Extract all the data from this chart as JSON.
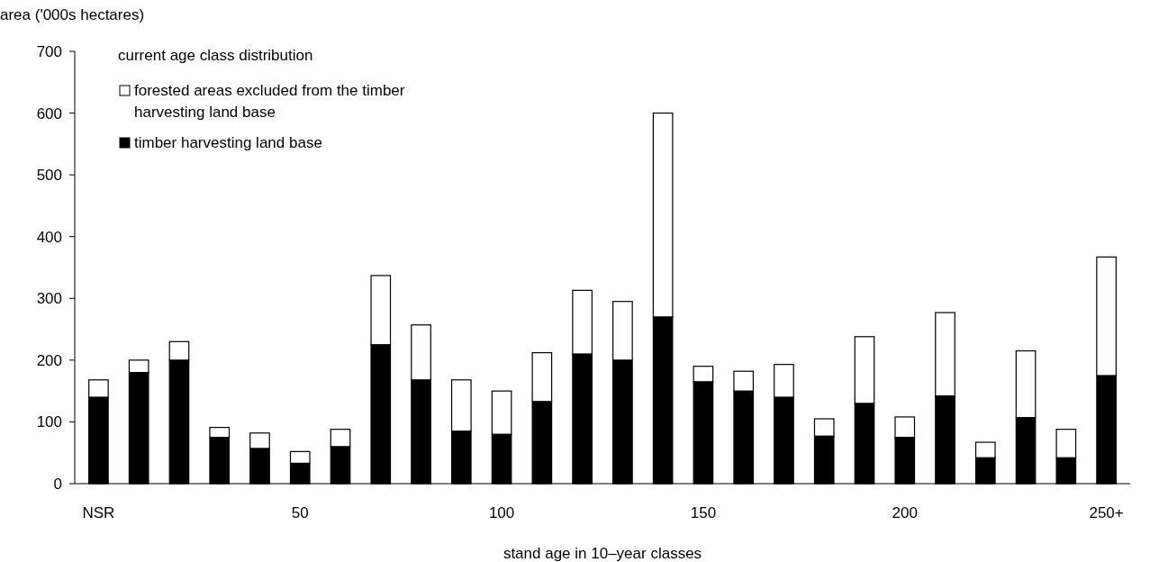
{
  "chart_data": {
    "type": "bar",
    "stacked": true,
    "ylabel": "area ('000s hectares)",
    "xlabel": "stand age in 10–year classes",
    "legend_title": "current age class distribution",
    "legend": "top left",
    "categories": [
      "NSR",
      null,
      null,
      null,
      null,
      "50",
      null,
      null,
      null,
      null,
      "100",
      null,
      null,
      null,
      null,
      "150",
      null,
      null,
      null,
      null,
      "200",
      null,
      null,
      null,
      null,
      "250+"
    ],
    "ylim": [
      0,
      700
    ],
    "yticks": [
      0,
      100,
      200,
      300,
      400,
      500,
      600,
      700
    ],
    "series": [
      {
        "name": "timber harvesting land base",
        "color": "#000000",
        "values": [
          140,
          180,
          200,
          75,
          57,
          33,
          60,
          225,
          168,
          85,
          80,
          133,
          210,
          200,
          270,
          165,
          150,
          140,
          77,
          130,
          75,
          142,
          42,
          107,
          42,
          175
        ]
      },
      {
        "name": "forested areas excluded from the timber harvesting land base",
        "color": "#ffffff",
        "values": [
          28,
          20,
          30,
          16,
          25,
          19,
          28,
          112,
          89,
          83,
          70,
          79,
          103,
          95,
          330,
          25,
          32,
          53,
          28,
          108,
          33,
          135,
          25,
          108,
          46,
          192
        ]
      }
    ]
  }
}
